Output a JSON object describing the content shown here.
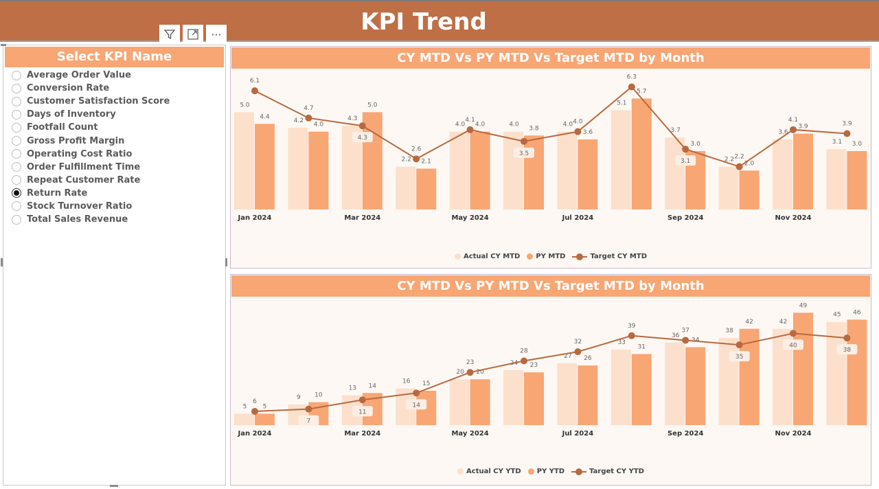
{
  "header": {
    "title": "KPI Trend"
  },
  "toolbar": {
    "icons": [
      "filter-icon",
      "focus-mode-icon",
      "more-options-icon"
    ],
    "more_label": "···"
  },
  "slicer": {
    "title": "Select KPI Name",
    "items": [
      {
        "label": "Average Order Value",
        "selected": false
      },
      {
        "label": "Conversion Rate",
        "selected": false
      },
      {
        "label": "Customer Satisfaction Score",
        "selected": false
      },
      {
        "label": "Days of Inventory",
        "selected": false
      },
      {
        "label": "Footfall Count",
        "selected": false
      },
      {
        "label": "Gross Profit Margin",
        "selected": false
      },
      {
        "label": "Operating Cost Ratio",
        "selected": false
      },
      {
        "label": "Order Fulfillment Time",
        "selected": false
      },
      {
        "label": "Repeat Customer Rate",
        "selected": false
      },
      {
        "label": "Return Rate",
        "selected": true
      },
      {
        "label": "Stock Turnover Ratio",
        "selected": false
      },
      {
        "label": "Total Sales Revenue",
        "selected": false
      }
    ]
  },
  "colors": {
    "header": "#BF6F46",
    "title_bar": "#F8A674",
    "actual": "#FCE0CC",
    "prior": "#F8A674",
    "target": "#B8693F"
  },
  "chart_data": [
    {
      "type": "bar",
      "title": "CY MTD Vs PY MTD Vs Target MTD by Month",
      "categories": [
        "Jan 2024",
        "Feb 2024",
        "Mar 2024",
        "Apr 2024",
        "May 2024",
        "Jun 2024",
        "Jul 2024",
        "Aug 2024",
        "Sep 2024",
        "Oct 2024",
        "Nov 2024",
        "Dec 2024"
      ],
      "tick_labels": [
        "Jan 2024",
        "",
        "Mar 2024",
        "",
        "May 2024",
        "",
        "Jul 2024",
        "",
        "Sep 2024",
        "",
        "Nov 2024",
        ""
      ],
      "series": [
        {
          "name": "Actual CY MTD",
          "kind": "bar",
          "values": [
            5.0,
            4.2,
            4.3,
            2.2,
            4.0,
            4.0,
            4.0,
            5.1,
            3.7,
            2.2,
            3.6,
            3.1
          ]
        },
        {
          "name": "PY MTD",
          "kind": "bar",
          "values": [
            4.4,
            4.0,
            5.0,
            2.1,
            4.0,
            3.8,
            3.6,
            5.7,
            3.0,
            2.0,
            3.9,
            3.0
          ]
        },
        {
          "name": "Target CY MTD",
          "kind": "line",
          "values": [
            6.1,
            4.7,
            4.3,
            2.6,
            4.1,
            3.5,
            4.0,
            6.3,
            3.1,
            2.2,
            4.1,
            3.9
          ]
        }
      ],
      "decimals": 1,
      "ylim": [
        0,
        7.2
      ],
      "grid": false,
      "legend": "bottom"
    },
    {
      "type": "bar",
      "title": "CY MTD Vs PY MTD Vs Target MTD by Month",
      "categories": [
        "Jan 2024",
        "Feb 2024",
        "Mar 2024",
        "Apr 2024",
        "May 2024",
        "Jun 2024",
        "Jul 2024",
        "Aug 2024",
        "Sep 2024",
        "Oct 2024",
        "Nov 2024",
        "Dec 2024"
      ],
      "tick_labels": [
        "Jan 2024",
        "",
        "Mar 2024",
        "",
        "May 2024",
        "",
        "Jul 2024",
        "",
        "Sep 2024",
        "",
        "Nov 2024",
        ""
      ],
      "series": [
        {
          "name": "Actual CY YTD",
          "kind": "bar",
          "values": [
            5,
            9,
            13,
            16,
            20,
            24,
            27,
            33,
            36,
            38,
            42,
            45
          ]
        },
        {
          "name": "PY YTD",
          "kind": "bar",
          "values": [
            5,
            10,
            14,
            15,
            20,
            23,
            26,
            31,
            34,
            42,
            49,
            46
          ]
        },
        {
          "name": "Target CY YTD",
          "kind": "line",
          "values": [
            6,
            7,
            11,
            14,
            23,
            28,
            32,
            39,
            37,
            35,
            40,
            38
          ]
        }
      ],
      "decimals": 0,
      "ylim": [
        0,
        56
      ],
      "grid": false,
      "legend": "bottom"
    }
  ]
}
